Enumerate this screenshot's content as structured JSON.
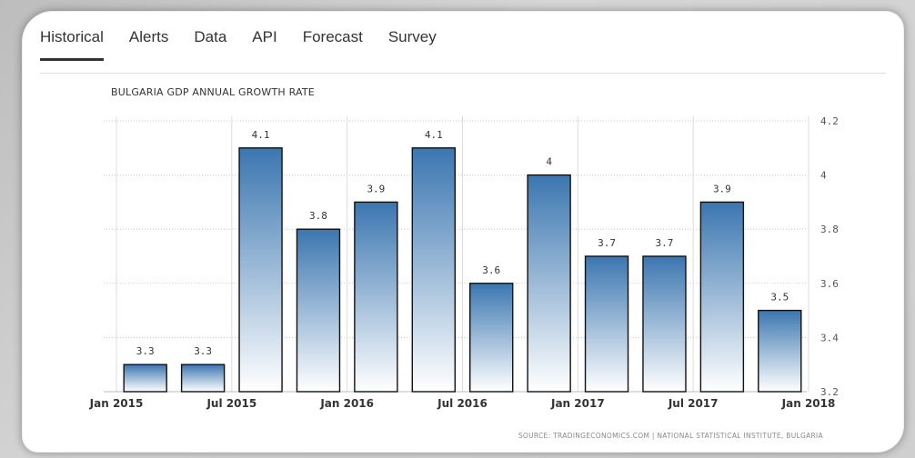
{
  "tabs": [
    "Historical",
    "Alerts",
    "Data",
    "API",
    "Forecast",
    "Survey"
  ],
  "active_tab": "Historical",
  "source_text": "SOURCE: TRADINGECONOMICS.COM | NATIONAL STATISTICAL INSTITUTE, BULGARIA",
  "colors": {
    "bar_top": "#3b76b0",
    "bar_bottom": "#ffffff",
    "bar_stroke": "#111111"
  },
  "chart_data": {
    "type": "bar",
    "title": "BULGARIA GDP ANNUAL GROWTH RATE",
    "categories": [
      "Q1 2015",
      "Q2 2015",
      "Q3 2015",
      "Q4 2015",
      "Q1 2016",
      "Q2 2016",
      "Q3 2016",
      "Q4 2016",
      "Q1 2017",
      "Q2 2017",
      "Q3 2017",
      "Q4 2017"
    ],
    "values": [
      3.3,
      3.3,
      4.1,
      3.8,
      3.9,
      4.1,
      3.6,
      4,
      3.7,
      3.7,
      3.9,
      3.5
    ],
    "data_labels": [
      "3.3",
      "3.3",
      "4.1",
      "3.8",
      "3.9",
      "4.1",
      "3.6",
      "4",
      "3.7",
      "3.7",
      "3.9",
      "3.5"
    ],
    "x_tick_labels": [
      "Jan 2015",
      "Jul 2015",
      "Jan 2016",
      "Jul 2016",
      "Jan 2017",
      "Jul 2017",
      "Jan 2018"
    ],
    "y_ticks": [
      "3.2",
      "3.4",
      "3.6",
      "3.8",
      "4",
      "4.2"
    ],
    "ylim": [
      3.2,
      4.2
    ],
    "y_axis_side": "right",
    "grid": true
  }
}
